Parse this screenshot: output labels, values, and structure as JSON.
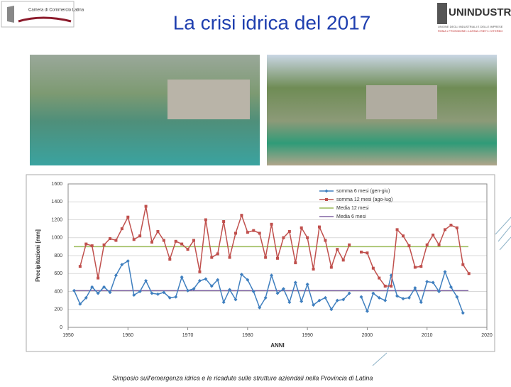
{
  "slide": {
    "title": "La crisi idrica del 2017",
    "footer": "Simposio sull'emergenza idrica e le ricadute sulle strutture aziendali nella Provincia di Latina",
    "logo_left": "Camera di Commercio Latina",
    "logo_right": "UNINDUSTRIA",
    "logo_right_line1": "UNIONE DEGLI INDUSTRIALI E DELLE IMPRESE",
    "logo_right_line2": "ROMA • FROSINONE • LATINA • RIETI • VITERBO"
  },
  "chart_data": {
    "type": "line",
    "x_label": "ANNI",
    "y_label": "Precipitazioni [mm]",
    "x": [
      1951,
      1952,
      1953,
      1954,
      1955,
      1956,
      1957,
      1958,
      1959,
      1960,
      1961,
      1962,
      1963,
      1964,
      1965,
      1966,
      1967,
      1968,
      1969,
      1970,
      1971,
      1972,
      1973,
      1974,
      1975,
      1976,
      1977,
      1978,
      1979,
      1980,
      1981,
      1982,
      1983,
      1984,
      1985,
      1986,
      1987,
      1988,
      1989,
      1990,
      1991,
      1992,
      1993,
      1994,
      1995,
      1996,
      1997,
      1998,
      1999,
      2000,
      2001,
      2002,
      2003,
      2004,
      2005,
      2006,
      2007,
      2008,
      2009,
      2010,
      2011,
      2012,
      2013,
      2014,
      2015,
      2016,
      2017
    ],
    "series": [
      {
        "name": "somma 6 mesi (gen-giu)",
        "color": "#3f7fbf",
        "marker": "diamond",
        "values": [
          410,
          260,
          330,
          450,
          380,
          450,
          390,
          580,
          700,
          740,
          360,
          400,
          520,
          380,
          370,
          390,
          330,
          340,
          560,
          410,
          430,
          520,
          540,
          460,
          530,
          280,
          420,
          310,
          590,
          530,
          400,
          220,
          330,
          580,
          380,
          430,
          280,
          500,
          290,
          480,
          250,
          300,
          330,
          200,
          300,
          310,
          380,
          null,
          340,
          180,
          380,
          330,
          300,
          580,
          350,
          320,
          330,
          440,
          280,
          510,
          500,
          400,
          620,
          450,
          340,
          160,
          null
        ]
      },
      {
        "name": "somma 12 mesi (ago-lug)",
        "color": "#c0504d",
        "marker": "square",
        "values": [
          null,
          680,
          930,
          910,
          550,
          920,
          990,
          970,
          1100,
          1230,
          980,
          1020,
          1350,
          950,
          1070,
          970,
          760,
          960,
          930,
          870,
          970,
          620,
          1200,
          780,
          820,
          1180,
          780,
          1050,
          1250,
          1060,
          1080,
          1050,
          780,
          1150,
          770,
          1000,
          1070,
          720,
          1110,
          1000,
          650,
          1120,
          970,
          670,
          870,
          750,
          920,
          null,
          840,
          830,
          660,
          550,
          460,
          460,
          1090,
          1020,
          910,
          670,
          680,
          920,
          1030,
          920,
          1090,
          1140,
          1110,
          700,
          600
        ]
      }
    ],
    "reference_lines": [
      {
        "name": "Media 12 mesi",
        "color": "#9bbb59",
        "value": 900
      },
      {
        "name": "Media 6 mesi",
        "color": "#8064a2",
        "value": 410
      }
    ],
    "xlim": [
      1950,
      2020
    ],
    "xticks": [
      1950,
      1960,
      1970,
      1980,
      1990,
      2000,
      2010,
      2020
    ],
    "ylim": [
      0,
      1600
    ],
    "yticks": [
      0,
      200,
      400,
      600,
      800,
      1000,
      1200,
      1400,
      1600
    ],
    "grid": true,
    "legend": "top-right"
  }
}
